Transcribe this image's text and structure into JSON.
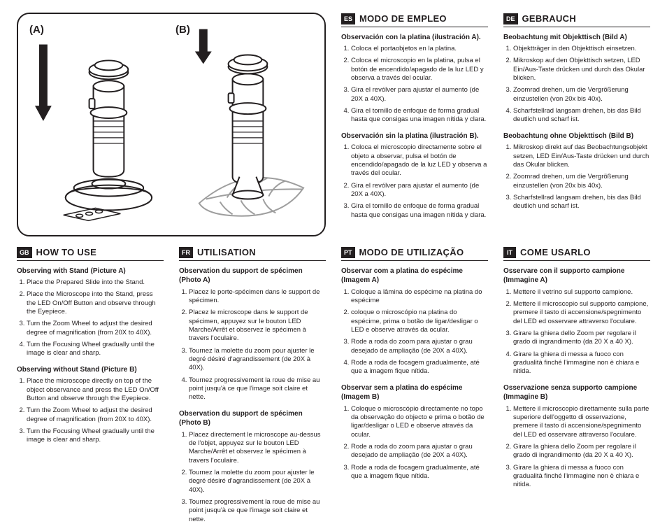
{
  "illustration": {
    "label_a": "(A)",
    "label_b": "(B)"
  },
  "sections": {
    "es": {
      "badge": "ES",
      "title": "MODO DE EMPLEO",
      "sub_a": "Observación con la platina (ilustración A).",
      "list_a": [
        "Coloca el portaobjetos en la platina.",
        "Coloca el microscopio en la platina, pulsa el botón de encendido/apagado de la luz LED y observa a través del ocular.",
        "Gira el revólver para ajustar el aumento (de 20X a 40X).",
        "Gira el tornillo de enfoque de forma gradual hasta que consigas una imagen nítida y clara."
      ],
      "sub_b": "Observación sin la platina (ilustración B).",
      "list_b": [
        "Coloca el microscopio directamente sobre el objeto a observar, pulsa el botón de encendido/apagado de la luz LED y observa a través del ocular.",
        "Gira el revólver para ajustar el aumento (de 20X a 40X).",
        "Gira el tornillo de enfoque de forma gradual hasta que consigas una imagen nítida y clara."
      ]
    },
    "de": {
      "badge": "DE",
      "title": "GEBRAUCH",
      "sub_a": "Beobachtung mit Objekttisch (Bild A)",
      "list_a": [
        "Objektträger in den Objekttisch einsetzen.",
        "Mikroskop auf den Objekttisch setzen, LED Ein/Aus-Taste drücken und durch das Okular blicken.",
        "Zoomrad drehen, um die Vergrößerung einzustellen (von 20x bis 40x).",
        "Scharfstellrad langsam drehen, bis das Bild deutlich und scharf ist."
      ],
      "sub_b": "Beobachtung ohne Objekttisch (Bild B)",
      "list_b": [
        "Mikroskop direkt auf das Beobachtungsobjekt setzen, LED Ein/Aus-Taste drücken und durch das Okular blicken.",
        "Zoomrad drehen, um die Vergrößerung einzustellen (von 20x bis 40x).",
        "Scharfstellrad langsam drehen, bis das Bild deutlich und scharf ist."
      ]
    },
    "gb": {
      "badge": "GB",
      "title": "HOW TO USE",
      "sub_a": "Observing with Stand (Picture A)",
      "list_a": [
        "Place the Prepared Slide into the Stand.",
        "Place the Microscope into the Stand, press the LED On/Off Button and observe through the Eyepiece.",
        "Turn the Zoom Wheel to adjust the desired degree of magnification (from 20X to 40X).",
        "Turn the Focusing Wheel gradually until the image is clear and sharp."
      ],
      "sub_b": "Observing without Stand (Picture B)",
      "list_b": [
        "Place the microscope directly on top of the object observance and press the LED On/Off Button and observe through the Eyepiece.",
        "Turn the Zoom Wheel to adjust the desired degree of magnification (from 20X to 40X).",
        "Turn the Focusing Wheel gradually until the image is clear and sharp."
      ]
    },
    "fr": {
      "badge": "FR",
      "title": "UTILISATION",
      "sub_a": "Observation du support de spécimen (Photo A)",
      "list_a": [
        "Placez le porte-spécimen dans le support de spécimen.",
        "Placez le microscope dans le support de spécimen, appuyez sur le bouton LED Marche/Arrêt et observez le spécimen à travers l'oculaire.",
        "Tournez la molette du zoom pour ajuster le degré désiré d'agrandissement (de 20X à 40X).",
        "Tournez progressivement la roue de mise au point jusqu'à ce que l'image soit claire et nette."
      ],
      "sub_b": "Observation du support de spécimen (Photo B)",
      "list_b": [
        "Placez directement le microscope au-dessus de l'objet, appuyez sur le bouton LED Marche/Arrêt et observez le spécimen à travers l'oculaire.",
        "Tournez la molette du zoom pour ajuster le degré désiré d'agrandissement (de 20X à 40X).",
        "Tournez progressivement la roue de mise au point jusqu'à ce que l'image soit claire et nette."
      ]
    },
    "pt": {
      "badge": "PT",
      "title": "MODO DE UTILIZAÇÃO",
      "sub_a": "Observar com a platina do espécime (Imagem A)",
      "list_a": [
        "Coloque a lâmina do espécime na platina do espécime",
        "coloque o microscópio na platina do espécime, prima o botão de ligar/desligar o LED e observe através da ocular.",
        "Rode a roda do zoom para ajustar o grau desejado de ampliação (de 20X a 40X).",
        "Rode a roda de focagem gradualmente, até que a imagem fique nítida."
      ],
      "sub_b": "Observar sem a platina do espécime (Imagem B)",
      "list_b": [
        "Coloque o microscópio directamente no topo da observação do objecto e prima o botão de ligar/desligar o LED e observe através da ocular.",
        "Rode a roda do zoom para ajustar o grau desejado de ampliação (de 20X a 40X).",
        "Rode a roda de focagem gradualmente, até que a imagem fique nítida."
      ]
    },
    "it": {
      "badge": "IT",
      "title": "COME USARLO",
      "sub_a": "Osservare con il supporto campione (Immagine A)",
      "list_a": [
        "Mettere il vetrino sul supporto campione.",
        "Mettere il microscopio sul supporto campione, premere il tasto di accensione/spegnimento del LED ed osservare attraverso l'oculare.",
        "Girare la ghiera dello Zoom per regolare il grado di ingrandimento (da 20 X a 40 X).",
        "Girare la ghiera di messa a fuoco con gradualità finché l'immagine non è chiara e nitida."
      ],
      "sub_b": "Osservazione senza supporto campione (Immagine B)",
      "list_b": [
        "Mettere il microscopio direttamente sulla parte superiore dell'oggetto di osservazione, premere il tasto di accensione/spegnimento del LED ed osservare attraverso l'oculare.",
        "Girare la ghiera dello Zoom per regolare il grado di ingrandimento (da 20 X a 40 X).",
        "Girare la ghiera di messa a fuoco con gradualità finché l'immagine non è chiara e nitida."
      ]
    }
  },
  "colors": {
    "ink": "#231f20",
    "paper": "#ffffff",
    "gray": "#9e9e9e"
  }
}
